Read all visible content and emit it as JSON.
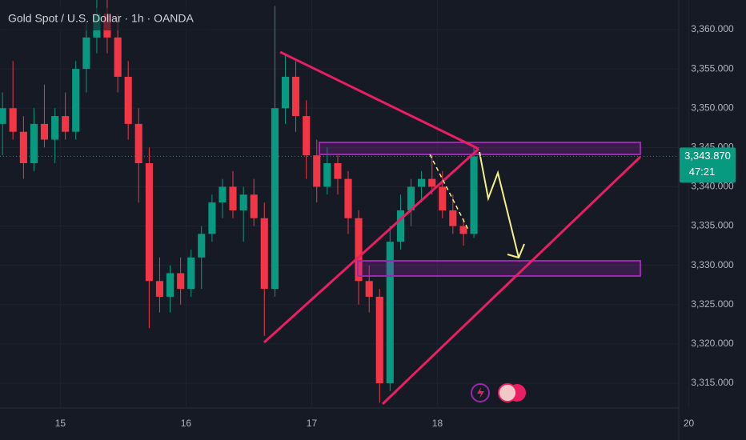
{
  "chart_data": {
    "type": "candlestick",
    "title": "Gold Spot / U.S. Dollar · 1h · OANDA",
    "xlim": [
      14.52,
      19.92
    ],
    "xticks": [
      15,
      16,
      17,
      18,
      20
    ],
    "ylim": [
      3311.84,
      3363.77
    ],
    "yticks": [
      {
        "value": 3315,
        "label": "3,315.000"
      },
      {
        "value": 3320,
        "label": "3,320.000"
      },
      {
        "value": 3325,
        "label": "3,325.000"
      },
      {
        "value": 3330,
        "label": "3,330.000"
      },
      {
        "value": 3335,
        "label": "3,335.000"
      },
      {
        "value": 3340,
        "label": "3,340.000"
      },
      {
        "value": 3345,
        "label": "3,345.000"
      },
      {
        "value": 3350,
        "label": "3,350.000"
      },
      {
        "value": 3355,
        "label": "3,355.000"
      },
      {
        "value": 3360,
        "label": "3,360.000"
      }
    ],
    "up_color": "#089981",
    "down_color": "#f23645",
    "last_price": {
      "value": 3343.87,
      "label": "3,343.870"
    },
    "countdown": "47:21",
    "x": [
      14.54,
      14.623,
      14.707,
      14.79,
      14.873,
      14.957,
      15.04,
      15.123,
      15.207,
      15.29,
      15.373,
      15.457,
      15.54,
      15.623,
      15.707,
      15.79,
      15.873,
      15.957,
      16.04,
      16.123,
      16.207,
      16.29,
      16.373,
      16.457,
      16.54,
      16.623,
      16.707,
      16.79,
      16.873,
      16.957,
      17.04,
      17.123,
      17.207,
      17.29,
      17.373,
      17.457,
      17.54,
      17.623,
      17.707,
      17.79,
      17.873,
      17.957,
      18.04,
      18.123,
      18.207,
      18.29
    ],
    "open": [
      3348,
      3350,
      3347,
      3343,
      3348,
      3346,
      3349,
      3347,
      3355,
      3359,
      3362,
      3359,
      3354,
      3348,
      3343,
      3328,
      3326,
      3329,
      3327,
      3331,
      3334,
      3338,
      3340,
      3337,
      3339,
      3336,
      3327,
      3350,
      3354,
      3349,
      3344,
      3340,
      3343,
      3341,
      3336,
      3328,
      3326,
      3315,
      3333,
      3337,
      3340,
      3341,
      3340,
      3337,
      3335,
      3334
    ],
    "high": [
      3352,
      3356,
      3349,
      3350,
      3353,
      3350,
      3352,
      3356,
      3361,
      3364,
      3365,
      3362,
      3356,
      3350,
      3345,
      3331,
      3330,
      3331,
      3332,
      3335,
      3339,
      3341,
      3342,
      3340,
      3341,
      3338,
      3363,
      3357,
      3356,
      3351,
      3346,
      3345,
      3344,
      3342,
      3337,
      3330,
      3327,
      3335,
      3339,
      3341,
      3342,
      3344,
      3342,
      3339,
      3336,
      3345
    ],
    "low": [
      3344,
      3346,
      3341,
      3342,
      3345,
      3343,
      3346,
      3346,
      3352,
      3357,
      3357,
      3352,
      3346,
      3338,
      3322,
      3324,
      3324,
      3325,
      3326,
      3327,
      3333,
      3336,
      3336,
      3333,
      3335,
      3321,
      3326,
      3348,
      3347,
      3341,
      3338,
      3339,
      3339,
      3334,
      3325,
      3324,
      3312.5,
      3314,
      3332,
      3335,
      3338,
      3339,
      3336,
      3334,
      3332.5,
      3333.5
    ],
    "close": [
      3350,
      3347,
      3343,
      3348,
      3346,
      3349,
      3347,
      3355,
      3359,
      3362,
      3359,
      3354,
      3348,
      3343,
      3328,
      3326,
      3329,
      3327,
      3331,
      3334,
      3338,
      3340,
      3337,
      3339,
      3336,
      3327,
      3350,
      3354,
      3349,
      3344,
      3340,
      3343,
      3341,
      3336,
      3328,
      3326,
      3315,
      3333,
      3337,
      3340,
      3341,
      3340,
      3337,
      3335,
      3334,
      3343.87
    ]
  }
}
